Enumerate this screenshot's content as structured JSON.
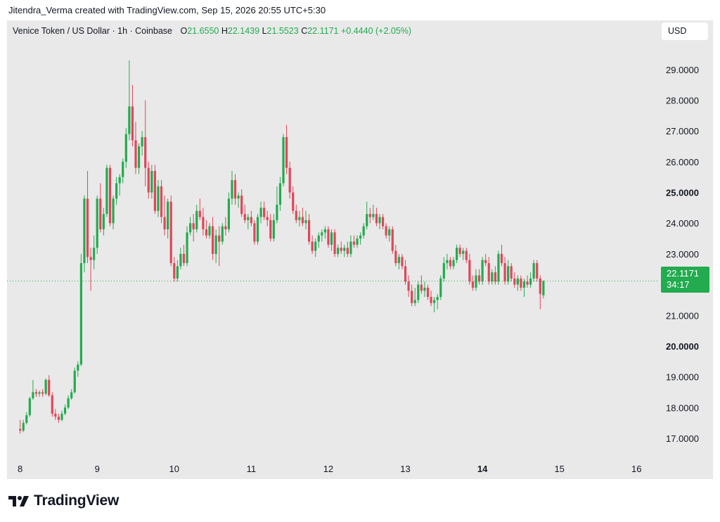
{
  "credit": "Jitendra_Verma created with TradingView.com, Sep 15, 2026 20:55 UTC+5:30",
  "legend": {
    "symbol": "Venice Token / US Dollar · 1h · Coinbase",
    "open_key": "O",
    "open": "21.6550",
    "high_key": "H",
    "high": "22.1439",
    "low_key": "L",
    "low": "21.5523",
    "close_key": "C",
    "close": "22.1171",
    "change": "+0.4440 (+2.05%)"
  },
  "currency": "USD",
  "last_price": {
    "price": "22.1171",
    "countdown": "34:17"
  },
  "brand": "TradingView",
  "colors": {
    "up": "#22ab4f",
    "down": "#e0465a",
    "background": "#e9e9e9",
    "price_line": "#22ab4f"
  },
  "chart_data": {
    "type": "candlestick",
    "timeframe": "1h",
    "y_axis": {
      "ticks": [
        "17.0000",
        "18.0000",
        "19.0000",
        "20.0000",
        "21.0000",
        "22.0000",
        "23.0000",
        "24.0000",
        "25.0000",
        "26.0000",
        "27.0000",
        "28.0000",
        "29.0000"
      ],
      "bold_ticks": [
        "20.0000",
        "25.0000"
      ],
      "ylim": [
        15.9,
        30.6
      ]
    },
    "x_axis": {
      "ticks": [
        "8",
        "9",
        "10",
        "11",
        "12",
        "13",
        "14",
        "15",
        "16"
      ],
      "bold_ticks": [
        "14"
      ],
      "xlim": [
        7.83,
        16.18
      ]
    },
    "last_price": 22.1171,
    "candles": [
      {
        "o": 17.3,
        "h": 17.6,
        "l": 17.15,
        "c": 17.25
      },
      {
        "o": 17.25,
        "h": 17.6,
        "l": 17.2,
        "c": 17.5
      },
      {
        "o": 17.5,
        "h": 17.85,
        "l": 17.45,
        "c": 17.75
      },
      {
        "o": 17.75,
        "h": 18.35,
        "l": 17.7,
        "c": 18.3
      },
      {
        "o": 18.3,
        "h": 18.9,
        "l": 18.25,
        "c": 18.5
      },
      {
        "o": 18.5,
        "h": 18.6,
        "l": 18.35,
        "c": 18.45
      },
      {
        "o": 18.45,
        "h": 18.55,
        "l": 18.35,
        "c": 18.5
      },
      {
        "o": 18.5,
        "h": 18.6,
        "l": 18.35,
        "c": 18.45
      },
      {
        "o": 18.45,
        "h": 18.95,
        "l": 18.4,
        "c": 18.9
      },
      {
        "o": 18.9,
        "h": 19.05,
        "l": 18.35,
        "c": 18.4
      },
      {
        "o": 18.4,
        "h": 18.5,
        "l": 17.7,
        "c": 17.8
      },
      {
        "o": 17.8,
        "h": 17.95,
        "l": 17.6,
        "c": 17.7
      },
      {
        "o": 17.7,
        "h": 17.8,
        "l": 17.5,
        "c": 17.6
      },
      {
        "o": 17.6,
        "h": 17.9,
        "l": 17.55,
        "c": 17.8
      },
      {
        "o": 17.8,
        "h": 18.1,
        "l": 17.75,
        "c": 18.0
      },
      {
        "o": 18.0,
        "h": 18.4,
        "l": 17.95,
        "c": 18.3
      },
      {
        "o": 18.3,
        "h": 18.6,
        "l": 18.25,
        "c": 18.5
      },
      {
        "o": 18.5,
        "h": 19.3,
        "l": 18.45,
        "c": 19.2
      },
      {
        "o": 19.2,
        "h": 19.5,
        "l": 19.0,
        "c": 19.4
      },
      {
        "o": 19.4,
        "h": 23.0,
        "l": 19.35,
        "c": 22.7
      },
      {
        "o": 22.7,
        "h": 24.9,
        "l": 22.4,
        "c": 24.8
      },
      {
        "o": 24.8,
        "h": 25.7,
        "l": 22.7,
        "c": 22.9
      },
      {
        "o": 22.9,
        "h": 23.2,
        "l": 21.8,
        "c": 22.8
      },
      {
        "o": 22.8,
        "h": 23.6,
        "l": 22.5,
        "c": 23.2
      },
      {
        "o": 23.2,
        "h": 24.9,
        "l": 23.0,
        "c": 24.8
      },
      {
        "o": 24.8,
        "h": 25.3,
        "l": 23.7,
        "c": 23.8
      },
      {
        "o": 23.8,
        "h": 24.5,
        "l": 23.6,
        "c": 24.3
      },
      {
        "o": 24.3,
        "h": 25.9,
        "l": 24.2,
        "c": 25.8
      },
      {
        "o": 25.8,
        "h": 25.9,
        "l": 23.9,
        "c": 24.0
      },
      {
        "o": 24.0,
        "h": 24.9,
        "l": 23.8,
        "c": 24.8
      },
      {
        "o": 24.8,
        "h": 25.5,
        "l": 24.6,
        "c": 25.3
      },
      {
        "o": 25.3,
        "h": 25.6,
        "l": 24.9,
        "c": 25.5
      },
      {
        "o": 25.5,
        "h": 26.1,
        "l": 25.3,
        "c": 26.0
      },
      {
        "o": 26.0,
        "h": 27.1,
        "l": 25.8,
        "c": 26.9
      },
      {
        "o": 26.9,
        "h": 29.3,
        "l": 26.7,
        "c": 27.8
      },
      {
        "o": 27.8,
        "h": 28.5,
        "l": 26.5,
        "c": 26.7
      },
      {
        "o": 26.7,
        "h": 27.3,
        "l": 25.6,
        "c": 25.8
      },
      {
        "o": 25.8,
        "h": 26.6,
        "l": 25.6,
        "c": 26.5
      },
      {
        "o": 26.5,
        "h": 27.0,
        "l": 26.2,
        "c": 26.8
      },
      {
        "o": 26.8,
        "h": 28.0,
        "l": 25.2,
        "c": 25.8
      },
      {
        "o": 25.8,
        "h": 26.0,
        "l": 24.8,
        "c": 25.0
      },
      {
        "o": 25.0,
        "h": 25.9,
        "l": 24.8,
        "c": 25.7
      },
      {
        "o": 25.7,
        "h": 25.9,
        "l": 24.3,
        "c": 24.4
      },
      {
        "o": 24.4,
        "h": 25.4,
        "l": 24.2,
        "c": 25.2
      },
      {
        "o": 25.2,
        "h": 25.4,
        "l": 24.0,
        "c": 24.2
      },
      {
        "o": 24.2,
        "h": 24.9,
        "l": 23.6,
        "c": 23.8
      },
      {
        "o": 23.8,
        "h": 24.8,
        "l": 23.5,
        "c": 24.7
      },
      {
        "o": 24.7,
        "h": 24.9,
        "l": 22.6,
        "c": 22.7
      },
      {
        "o": 22.7,
        "h": 22.9,
        "l": 22.1,
        "c": 22.2
      },
      {
        "o": 22.2,
        "h": 22.8,
        "l": 22.1,
        "c": 22.6
      },
      {
        "o": 22.6,
        "h": 23.2,
        "l": 22.5,
        "c": 23.0
      },
      {
        "o": 23.0,
        "h": 23.3,
        "l": 22.6,
        "c": 22.7
      },
      {
        "o": 22.7,
        "h": 23.9,
        "l": 22.6,
        "c": 23.7
      },
      {
        "o": 23.7,
        "h": 24.2,
        "l": 23.6,
        "c": 24.0
      },
      {
        "o": 24.0,
        "h": 24.3,
        "l": 23.4,
        "c": 23.8
      },
      {
        "o": 23.8,
        "h": 24.6,
        "l": 23.7,
        "c": 24.4
      },
      {
        "o": 24.4,
        "h": 24.8,
        "l": 24.1,
        "c": 24.2
      },
      {
        "o": 24.2,
        "h": 24.5,
        "l": 23.6,
        "c": 23.8
      },
      {
        "o": 23.8,
        "h": 24.1,
        "l": 23.5,
        "c": 23.6
      },
      {
        "o": 23.6,
        "h": 24.0,
        "l": 23.5,
        "c": 23.9
      },
      {
        "o": 23.9,
        "h": 24.2,
        "l": 22.8,
        "c": 23.0
      },
      {
        "o": 23.0,
        "h": 23.8,
        "l": 22.7,
        "c": 23.6
      },
      {
        "o": 23.6,
        "h": 23.9,
        "l": 22.6,
        "c": 23.4
      },
      {
        "o": 23.4,
        "h": 24.0,
        "l": 23.3,
        "c": 23.9
      },
      {
        "o": 23.9,
        "h": 24.2,
        "l": 23.6,
        "c": 23.8
      },
      {
        "o": 23.8,
        "h": 25.0,
        "l": 23.7,
        "c": 24.8
      },
      {
        "o": 24.8,
        "h": 25.7,
        "l": 24.6,
        "c": 25.4
      },
      {
        "o": 25.4,
        "h": 25.6,
        "l": 24.6,
        "c": 24.8
      },
      {
        "o": 24.8,
        "h": 25.0,
        "l": 24.5,
        "c": 24.9
      },
      {
        "o": 24.9,
        "h": 25.1,
        "l": 24.2,
        "c": 24.3
      },
      {
        "o": 24.3,
        "h": 24.6,
        "l": 24.0,
        "c": 24.1
      },
      {
        "o": 24.1,
        "h": 24.3,
        "l": 23.8,
        "c": 24.2
      },
      {
        "o": 24.2,
        "h": 24.4,
        "l": 23.9,
        "c": 24.0
      },
      {
        "o": 24.0,
        "h": 24.1,
        "l": 23.3,
        "c": 23.4
      },
      {
        "o": 23.4,
        "h": 24.3,
        "l": 23.3,
        "c": 24.2
      },
      {
        "o": 24.2,
        "h": 24.7,
        "l": 24.0,
        "c": 24.5
      },
      {
        "o": 24.5,
        "h": 24.7,
        "l": 24.1,
        "c": 24.2
      },
      {
        "o": 24.2,
        "h": 24.4,
        "l": 23.9,
        "c": 24.1
      },
      {
        "o": 24.1,
        "h": 24.3,
        "l": 23.4,
        "c": 23.5
      },
      {
        "o": 23.5,
        "h": 24.3,
        "l": 23.4,
        "c": 24.1
      },
      {
        "o": 24.1,
        "h": 25.2,
        "l": 24.0,
        "c": 24.6
      },
      {
        "o": 24.6,
        "h": 25.5,
        "l": 24.4,
        "c": 25.3
      },
      {
        "o": 25.3,
        "h": 26.9,
        "l": 25.2,
        "c": 26.8
      },
      {
        "o": 26.8,
        "h": 27.2,
        "l": 25.6,
        "c": 25.8
      },
      {
        "o": 25.8,
        "h": 26.0,
        "l": 24.8,
        "c": 25.0
      },
      {
        "o": 25.0,
        "h": 25.2,
        "l": 24.3,
        "c": 24.4
      },
      {
        "o": 24.4,
        "h": 24.6,
        "l": 24.0,
        "c": 24.1
      },
      {
        "o": 24.1,
        "h": 24.4,
        "l": 23.9,
        "c": 24.2
      },
      {
        "o": 24.2,
        "h": 24.5,
        "l": 23.9,
        "c": 24.0
      },
      {
        "o": 24.0,
        "h": 24.4,
        "l": 23.8,
        "c": 24.1
      },
      {
        "o": 24.1,
        "h": 24.3,
        "l": 23.3,
        "c": 23.4
      },
      {
        "o": 23.4,
        "h": 23.6,
        "l": 23.0,
        "c": 23.1
      },
      {
        "o": 23.1,
        "h": 23.5,
        "l": 22.9,
        "c": 23.4
      },
      {
        "o": 23.4,
        "h": 23.7,
        "l": 23.2,
        "c": 23.6
      },
      {
        "o": 23.6,
        "h": 23.8,
        "l": 23.4,
        "c": 23.7
      },
      {
        "o": 23.7,
        "h": 23.9,
        "l": 23.5,
        "c": 23.8
      },
      {
        "o": 23.8,
        "h": 23.9,
        "l": 23.2,
        "c": 23.3
      },
      {
        "o": 23.3,
        "h": 23.8,
        "l": 23.1,
        "c": 23.7
      },
      {
        "o": 23.7,
        "h": 23.8,
        "l": 22.9,
        "c": 23.0
      },
      {
        "o": 23.0,
        "h": 23.3,
        "l": 22.9,
        "c": 23.2
      },
      {
        "o": 23.2,
        "h": 23.4,
        "l": 23.0,
        "c": 23.1
      },
      {
        "o": 23.1,
        "h": 23.3,
        "l": 22.9,
        "c": 23.2
      },
      {
        "o": 23.2,
        "h": 23.4,
        "l": 22.9,
        "c": 23.0
      },
      {
        "o": 23.0,
        "h": 23.6,
        "l": 22.9,
        "c": 23.4
      },
      {
        "o": 23.4,
        "h": 23.6,
        "l": 23.2,
        "c": 23.3
      },
      {
        "o": 23.3,
        "h": 23.6,
        "l": 23.2,
        "c": 23.5
      },
      {
        "o": 23.5,
        "h": 23.7,
        "l": 23.3,
        "c": 23.6
      },
      {
        "o": 23.6,
        "h": 24.0,
        "l": 23.5,
        "c": 23.9
      },
      {
        "o": 23.9,
        "h": 24.7,
        "l": 23.8,
        "c": 24.3
      },
      {
        "o": 24.3,
        "h": 24.5,
        "l": 24.0,
        "c": 24.2
      },
      {
        "o": 24.2,
        "h": 24.6,
        "l": 24.1,
        "c": 24.3
      },
      {
        "o": 24.3,
        "h": 24.5,
        "l": 23.9,
        "c": 24.0
      },
      {
        "o": 24.0,
        "h": 24.3,
        "l": 23.8,
        "c": 24.2
      },
      {
        "o": 24.2,
        "h": 24.3,
        "l": 23.8,
        "c": 23.9
      },
      {
        "o": 23.9,
        "h": 24.0,
        "l": 23.5,
        "c": 23.6
      },
      {
        "o": 23.6,
        "h": 23.9,
        "l": 23.4,
        "c": 23.8
      },
      {
        "o": 23.8,
        "h": 23.9,
        "l": 23.0,
        "c": 23.1
      },
      {
        "o": 23.1,
        "h": 23.3,
        "l": 22.6,
        "c": 22.7
      },
      {
        "o": 22.7,
        "h": 23.0,
        "l": 22.5,
        "c": 22.9
      },
      {
        "o": 22.9,
        "h": 23.0,
        "l": 22.5,
        "c": 22.6
      },
      {
        "o": 22.6,
        "h": 22.8,
        "l": 22.0,
        "c": 22.1
      },
      {
        "o": 22.1,
        "h": 22.3,
        "l": 21.6,
        "c": 21.8
      },
      {
        "o": 21.8,
        "h": 22.0,
        "l": 21.3,
        "c": 21.4
      },
      {
        "o": 21.4,
        "h": 21.9,
        "l": 21.3,
        "c": 21.5
      },
      {
        "o": 21.5,
        "h": 22.1,
        "l": 21.4,
        "c": 22.0
      },
      {
        "o": 22.0,
        "h": 22.3,
        "l": 21.7,
        "c": 21.8
      },
      {
        "o": 21.8,
        "h": 22.1,
        "l": 21.6,
        "c": 21.9
      },
      {
        "o": 21.9,
        "h": 22.0,
        "l": 21.5,
        "c": 21.6
      },
      {
        "o": 21.6,
        "h": 21.8,
        "l": 21.3,
        "c": 21.4
      },
      {
        "o": 21.4,
        "h": 21.6,
        "l": 21.1,
        "c": 21.5
      },
      {
        "o": 21.5,
        "h": 21.7,
        "l": 21.2,
        "c": 21.6
      },
      {
        "o": 21.6,
        "h": 22.3,
        "l": 21.5,
        "c": 22.2
      },
      {
        "o": 22.2,
        "h": 22.9,
        "l": 22.1,
        "c": 22.7
      },
      {
        "o": 22.7,
        "h": 23.0,
        "l": 22.5,
        "c": 22.8
      },
      {
        "o": 22.8,
        "h": 22.9,
        "l": 22.5,
        "c": 22.6
      },
      {
        "o": 22.6,
        "h": 22.9,
        "l": 22.5,
        "c": 22.8
      },
      {
        "o": 22.8,
        "h": 23.3,
        "l": 22.7,
        "c": 23.2
      },
      {
        "o": 23.2,
        "h": 23.3,
        "l": 22.9,
        "c": 23.0
      },
      {
        "o": 23.0,
        "h": 23.2,
        "l": 22.8,
        "c": 23.1
      },
      {
        "o": 23.1,
        "h": 23.2,
        "l": 22.7,
        "c": 22.8
      },
      {
        "o": 22.8,
        "h": 23.0,
        "l": 22.0,
        "c": 22.1
      },
      {
        "o": 22.1,
        "h": 22.3,
        "l": 21.8,
        "c": 21.9
      },
      {
        "o": 21.9,
        "h": 22.5,
        "l": 21.8,
        "c": 22.3
      },
      {
        "o": 22.3,
        "h": 22.5,
        "l": 22.0,
        "c": 22.1
      },
      {
        "o": 22.1,
        "h": 22.9,
        "l": 22.0,
        "c": 22.8
      },
      {
        "o": 22.8,
        "h": 23.0,
        "l": 22.6,
        "c": 22.7
      },
      {
        "o": 22.7,
        "h": 22.9,
        "l": 22.0,
        "c": 22.1
      },
      {
        "o": 22.1,
        "h": 22.5,
        "l": 22.0,
        "c": 22.4
      },
      {
        "o": 22.4,
        "h": 22.6,
        "l": 22.0,
        "c": 22.1
      },
      {
        "o": 22.1,
        "h": 23.1,
        "l": 22.0,
        "c": 23.0
      },
      {
        "o": 23.0,
        "h": 23.3,
        "l": 22.6,
        "c": 22.7
      },
      {
        "o": 22.7,
        "h": 22.9,
        "l": 22.0,
        "c": 22.1
      },
      {
        "o": 22.1,
        "h": 22.8,
        "l": 22.0,
        "c": 22.6
      },
      {
        "o": 22.6,
        "h": 22.7,
        "l": 22.1,
        "c": 22.2
      },
      {
        "o": 22.2,
        "h": 22.4,
        "l": 21.9,
        "c": 22.0
      },
      {
        "o": 22.0,
        "h": 22.3,
        "l": 21.8,
        "c": 22.2
      },
      {
        "o": 22.2,
        "h": 22.3,
        "l": 21.8,
        "c": 21.9
      },
      {
        "o": 21.9,
        "h": 22.2,
        "l": 21.6,
        "c": 22.1
      },
      {
        "o": 22.1,
        "h": 22.3,
        "l": 21.9,
        "c": 22.0
      },
      {
        "o": 22.0,
        "h": 22.4,
        "l": 21.9,
        "c": 22.2
      },
      {
        "o": 22.2,
        "h": 22.8,
        "l": 22.1,
        "c": 22.7
      },
      {
        "o": 22.7,
        "h": 22.8,
        "l": 22.1,
        "c": 22.2
      },
      {
        "o": 22.2,
        "h": 22.3,
        "l": 21.2,
        "c": 21.7
      },
      {
        "o": 21.655,
        "h": 22.1439,
        "l": 21.5523,
        "c": 22.1171
      }
    ]
  }
}
